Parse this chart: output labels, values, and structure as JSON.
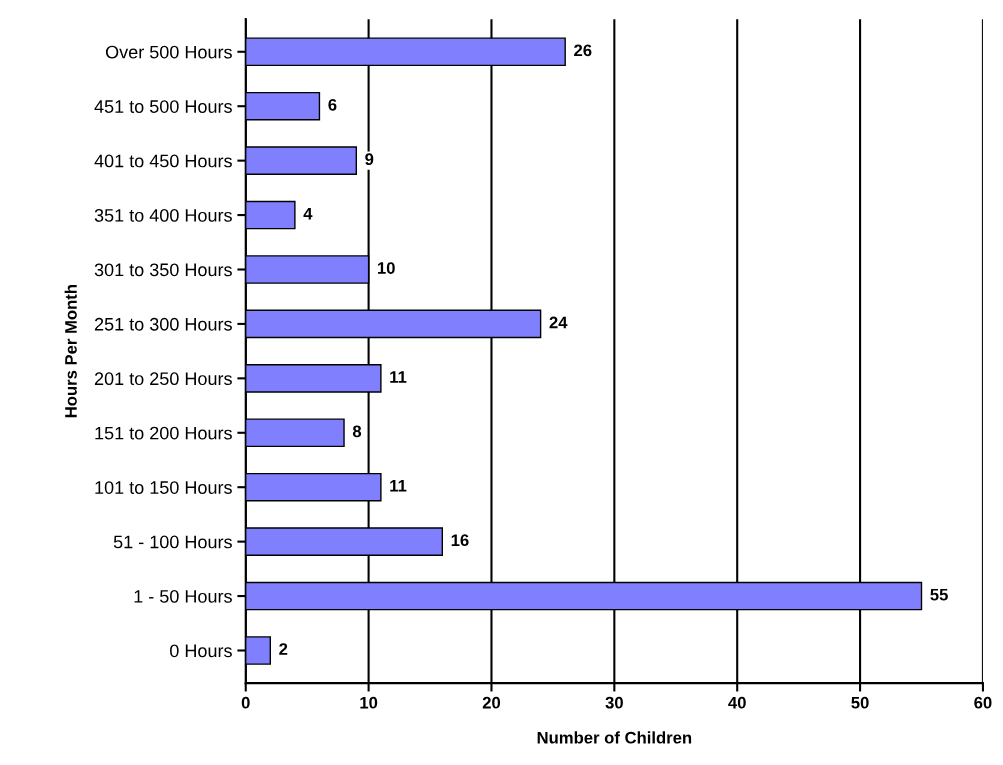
{
  "chart_data": {
    "type": "bar",
    "orientation": "horizontal",
    "xlabel": "Number of Children",
    "ylabel": "Hours Per Month",
    "categories": [
      "Over 500 Hours",
      "451 to 500 Hours",
      "401 to 450 Hours",
      "351 to 400 Hours",
      "301 to 350 Hours",
      "251 to 300 Hours",
      "201 to 250 Hours",
      "151 to 200 Hours",
      "101 to 150 Hours",
      "51 - 100 Hours",
      "1 - 50 Hours",
      "0 Hours"
    ],
    "values": [
      26,
      6,
      9,
      4,
      10,
      24,
      11,
      8,
      11,
      16,
      55,
      2
    ],
    "color": "#8080ff",
    "xlim": [
      0,
      60
    ],
    "xticks": [
      0,
      10,
      20,
      30,
      40,
      50,
      60
    ],
    "grid": "x",
    "data_labels": true,
    "legend": false
  }
}
